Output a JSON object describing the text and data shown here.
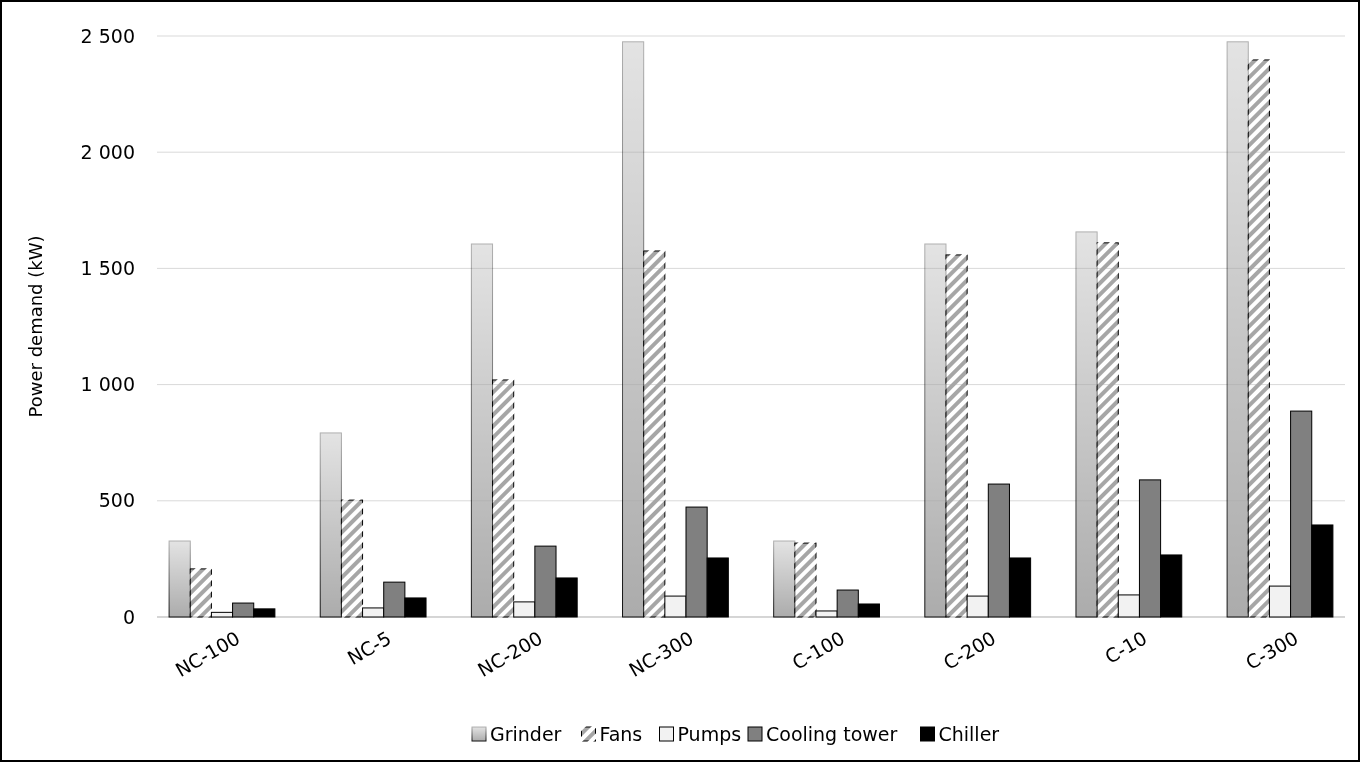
{
  "chart_data": {
    "type": "bar",
    "ylabel": "Power demand (kW)",
    "categories": [
      "NC-100",
      "NC-5",
      "NC-200",
      "NC-300",
      "C-100",
      "C-200",
      "C-10",
      "C-300"
    ],
    "series": [
      {
        "name": "Grinder",
        "color": "#a6a6a6",
        "values": [
          327,
          792,
          1605,
          2475,
          327,
          1605,
          1657,
          2475
        ]
      },
      {
        "name": "Fans",
        "color": "#a6a6a6",
        "values": [
          207,
          503,
          1020,
          1575,
          318,
          1558,
          1610,
          2397
        ]
      },
      {
        "name": "Pumps",
        "color": "#f2f2f2",
        "values": [
          20,
          39,
          65,
          90,
          26,
          90,
          95,
          133
        ]
      },
      {
        "name": "Cooling tower",
        "color": "#808080",
        "values": [
          60,
          150,
          305,
          473,
          116,
          572,
          590,
          886
        ]
      },
      {
        "name": "Chiller",
        "color": "#000000",
        "values": [
          35,
          82,
          168,
          254,
          56,
          254,
          267,
          396
        ]
      }
    ],
    "ylim": [
      0,
      2500
    ],
    "yticks": [
      0,
      {
        "value": 500,
        "label": "500"
      },
      {
        "value": 1000,
        "label": "1 000"
      },
      {
        "value": 1500,
        "label": "1 500"
      },
      {
        "value": 2000,
        "label": "2 000"
      },
      {
        "value": 2500,
        "label": "2 500"
      }
    ],
    "grid": "y",
    "legend": "bottom"
  }
}
